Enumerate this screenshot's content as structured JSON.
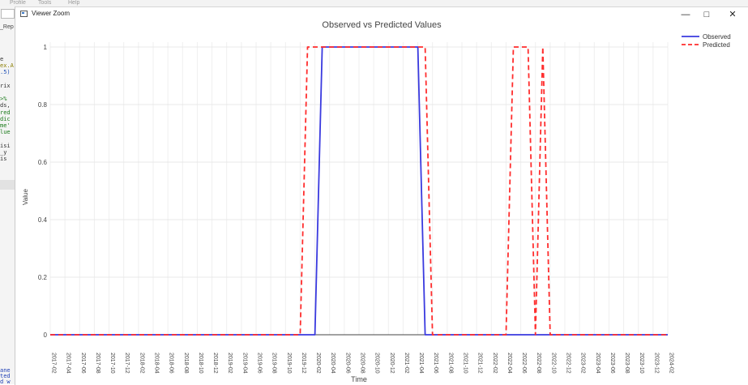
{
  "background": {
    "menu": [
      "Profile",
      "Tools",
      "Help"
    ],
    "tab_stub": "_Rep",
    "code_lines": [
      {
        "t": "e",
        "c": "#333333"
      },
      {
        "t": "ex.A",
        "c": "#8a7d00"
      },
      {
        "t": ".5)",
        "c": "#1f4fb5"
      },
      {
        "t": "",
        "c": "#333333"
      },
      {
        "t": "rix",
        "c": "#333333"
      },
      {
        "t": "",
        "c": "#333333"
      },
      {
        "t": ">%",
        "c": "#1a7a1a"
      },
      {
        "t": "ds,",
        "c": "#333333"
      },
      {
        "t": "red",
        "c": "#1a7a1a"
      },
      {
        "t": "dic",
        "c": "#1a7a1a"
      },
      {
        "t": "me'",
        "c": "#1a7a1a"
      },
      {
        "t": "lue",
        "c": "#1a7a1a"
      },
      {
        "t": "",
        "c": "#333333"
      },
      {
        "t": "isi",
        "c": "#333333"
      },
      {
        "t": "_y",
        "c": "#333333"
      },
      {
        "t": "is",
        "c": "#333333"
      }
    ],
    "console_lines": [
      {
        "t": "ane",
        "c": "#1f3fb5"
      },
      {
        "t": "ted",
        "c": "#1f3fb5"
      },
      {
        "t": "d w",
        "c": "#1f3fb5"
      }
    ]
  },
  "window": {
    "title": "Viewer Zoom",
    "minimize_icon": "minimize-icon",
    "maximize_icon": "maximize-icon",
    "close_icon": "close-icon",
    "minimize_glyph": "—",
    "maximize_glyph": "□",
    "close_glyph": "✕"
  },
  "chart_data": {
    "type": "line",
    "title": "Observed vs Predicted Values",
    "xlabel": "Time",
    "ylabel": "Value",
    "ylim": [
      0,
      1
    ],
    "yticks": [
      "0",
      "0.2",
      "0.4",
      "0.6",
      "0.8",
      "1"
    ],
    "grid": true,
    "legend_position": "top-right",
    "x_ticks": [
      "2017-02",
      "2017-04",
      "2017-06",
      "2017-08",
      "2017-10",
      "2017-12",
      "2018-02",
      "2018-04",
      "2018-06",
      "2018-08",
      "2018-10",
      "2018-12",
      "2019-02",
      "2019-04",
      "2019-06",
      "2019-08",
      "2019-10",
      "2019-12",
      "2020-02",
      "2020-04",
      "2020-06",
      "2020-08",
      "2020-10",
      "2020-12",
      "2021-02",
      "2021-04",
      "2021-06",
      "2021-08",
      "2021-10",
      "2021-12",
      "2022-02",
      "2022-04",
      "2022-06",
      "2022-08",
      "2022-10",
      "2022-12",
      "2023-02",
      "2023-04",
      "2023-06",
      "2023-08",
      "2023-10",
      "2023-12",
      "2024-02"
    ],
    "series": [
      {
        "name": "Observed",
        "color": "#3a3adf",
        "style": "solid",
        "points": [
          [
            "2017-02",
            0
          ],
          [
            "2020-02",
            0
          ],
          [
            "2020-03",
            1
          ],
          [
            "2021-04",
            1
          ],
          [
            "2021-05",
            0
          ],
          [
            "2024-02",
            0
          ]
        ]
      },
      {
        "name": "Predicted",
        "color": "#ff2d2d",
        "style": "dashed",
        "points": [
          [
            "2017-02",
            0
          ],
          [
            "2019-12",
            0
          ],
          [
            "2020-01",
            1
          ],
          [
            "2021-05",
            1
          ],
          [
            "2021-06",
            0
          ],
          [
            "2022-04",
            0
          ],
          [
            "2022-05",
            1
          ],
          [
            "2022-06",
            1
          ],
          [
            "2022-07",
            1
          ],
          [
            "2022-08",
            0
          ],
          [
            "2022-09",
            1
          ],
          [
            "2022-10",
            0
          ],
          [
            "2024-02",
            0
          ]
        ]
      }
    ]
  }
}
